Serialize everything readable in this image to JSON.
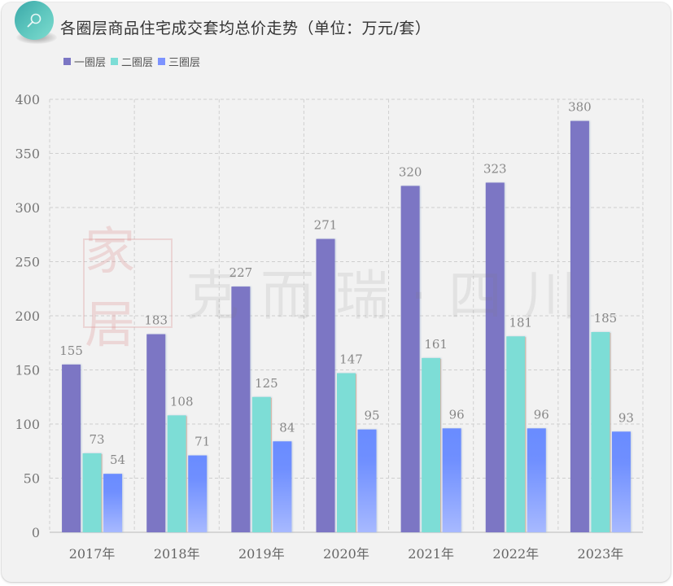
{
  "header": {
    "icon": "search-icon",
    "title": "各圈层商品住宅成交套均总价走势（单位：万元/套）"
  },
  "legend": [
    {
      "label": "一圈层",
      "color": "#7b76c4"
    },
    {
      "label": "二圈层",
      "color": "#7dddd6"
    },
    {
      "label": "三圈层",
      "color": "#7d93ff"
    }
  ],
  "watermark": {
    "seal": "家居",
    "text": "克而瑞·四川"
  },
  "chart_data": {
    "type": "bar",
    "title": "各圈层商品住宅成交套均总价走势（单位：万元/套）",
    "xlabel": "",
    "ylabel": "",
    "categories": [
      "2017年",
      "2018年",
      "2019年",
      "2020年",
      "2021年",
      "2022年",
      "2023年"
    ],
    "series": [
      {
        "name": "一圈层",
        "color": "#7b76c4",
        "values": [
          155,
          183,
          227,
          271,
          320,
          323,
          380
        ]
      },
      {
        "name": "二圈层",
        "color": "#7dddd6",
        "values": [
          73,
          108,
          125,
          147,
          161,
          181,
          185
        ]
      },
      {
        "name": "三圈层",
        "color": "#7d93ff",
        "values": [
          54,
          71,
          84,
          95,
          96,
          96,
          93
        ]
      }
    ],
    "ylim": [
      0,
      400
    ],
    "yticks": [
      0,
      50,
      100,
      150,
      200,
      250,
      300,
      350,
      400
    ],
    "grid": true,
    "legend_position": "top-left",
    "data_labels": true
  }
}
